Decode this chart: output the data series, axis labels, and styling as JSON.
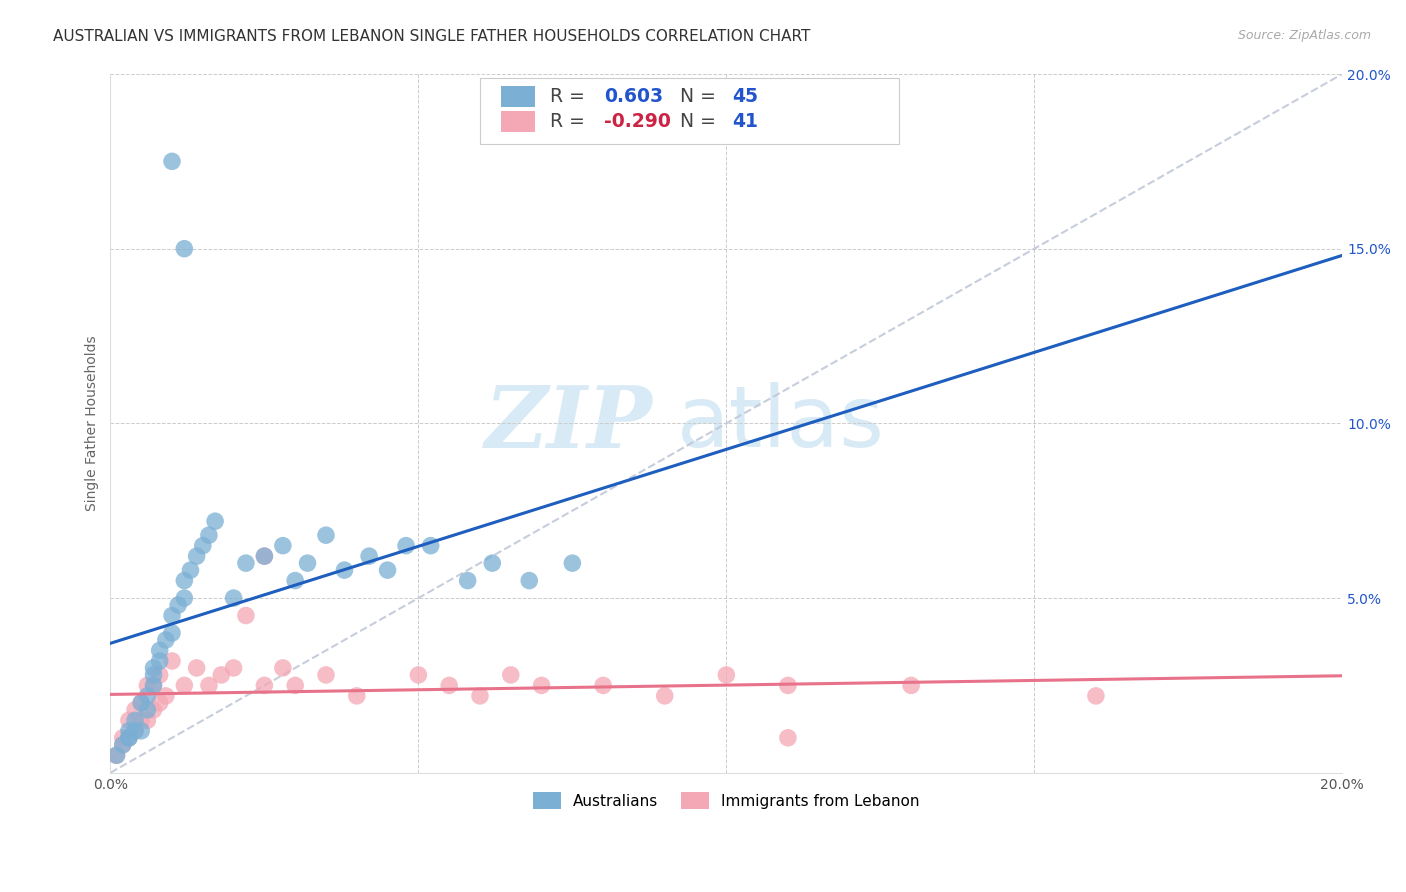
{
  "title": "AUSTRALIAN VS IMMIGRANTS FROM LEBANON SINGLE FATHER HOUSEHOLDS CORRELATION CHART",
  "source": "Source: ZipAtlas.com",
  "ylabel": "Single Father Households",
  "xlim": [
    0.0,
    0.2
  ],
  "ylim": [
    0.0,
    0.2
  ],
  "xticks": [
    0.0,
    0.05,
    0.1,
    0.15,
    0.2
  ],
  "yticks": [
    0.0,
    0.05,
    0.1,
    0.15,
    0.2
  ],
  "xticklabels": [
    "0.0%",
    "",
    "",
    "",
    "20.0%"
  ],
  "yticklabels": [
    "",
    "5.0%",
    "10.0%",
    "15.0%",
    "20.0%"
  ],
  "r_australian": "0.603",
  "n_australian": "45",
  "r_lebanon": "-0.290",
  "n_lebanon": "41",
  "blue_scatter": "#7BAFD4",
  "pink_scatter": "#F4A7B5",
  "line_blue": "#1E5EBF",
  "line_pink": "#E8728A",
  "diag_color": "#C0C8D8",
  "r_color_blue": "#2255CC",
  "r_color_pink": "#CC2244",
  "n_color": "#2255CC",
  "label_blue": "Australians",
  "label_pink": "Immigrants from Lebanon",
  "watermark_color": "#D8EAF5",
  "australian_x": [
    0.001,
    0.002,
    0.003,
    0.003,
    0.003,
    0.004,
    0.004,
    0.005,
    0.005,
    0.006,
    0.006,
    0.007,
    0.007,
    0.007,
    0.008,
    0.008,
    0.009,
    0.01,
    0.01,
    0.011,
    0.012,
    0.012,
    0.013,
    0.014,
    0.015,
    0.016,
    0.017,
    0.02,
    0.022,
    0.025,
    0.028,
    0.03,
    0.032,
    0.035,
    0.038,
    0.042,
    0.045,
    0.048,
    0.052,
    0.058,
    0.062,
    0.068,
    0.075,
    0.01,
    0.012
  ],
  "australian_y": [
    0.005,
    0.008,
    0.01,
    0.012,
    0.01,
    0.012,
    0.015,
    0.012,
    0.02,
    0.018,
    0.022,
    0.025,
    0.028,
    0.03,
    0.035,
    0.032,
    0.038,
    0.04,
    0.045,
    0.048,
    0.05,
    0.055,
    0.058,
    0.062,
    0.065,
    0.068,
    0.072,
    0.05,
    0.06,
    0.062,
    0.065,
    0.055,
    0.06,
    0.068,
    0.058,
    0.062,
    0.058,
    0.065,
    0.065,
    0.055,
    0.06,
    0.055,
    0.06,
    0.175,
    0.15
  ],
  "lebanon_x": [
    0.001,
    0.002,
    0.002,
    0.003,
    0.003,
    0.004,
    0.004,
    0.005,
    0.005,
    0.006,
    0.006,
    0.007,
    0.007,
    0.008,
    0.008,
    0.009,
    0.01,
    0.012,
    0.014,
    0.016,
    0.018,
    0.02,
    0.022,
    0.025,
    0.025,
    0.028,
    0.03,
    0.035,
    0.04,
    0.05,
    0.055,
    0.06,
    0.065,
    0.07,
    0.08,
    0.09,
    0.1,
    0.11,
    0.13,
    0.16,
    0.11
  ],
  "lebanon_y": [
    0.005,
    0.008,
    0.01,
    0.01,
    0.015,
    0.012,
    0.018,
    0.015,
    0.02,
    0.015,
    0.025,
    0.018,
    0.025,
    0.02,
    0.028,
    0.022,
    0.032,
    0.025,
    0.03,
    0.025,
    0.028,
    0.03,
    0.045,
    0.025,
    0.062,
    0.03,
    0.025,
    0.028,
    0.022,
    0.028,
    0.025,
    0.022,
    0.028,
    0.025,
    0.025,
    0.022,
    0.028,
    0.025,
    0.025,
    0.022,
    0.01
  ]
}
